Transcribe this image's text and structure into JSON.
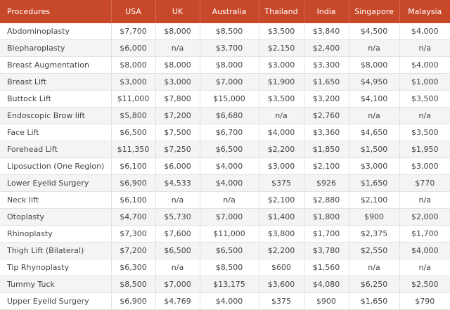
{
  "table": {
    "headers": [
      "Procedures",
      "USA",
      "UK",
      "Australia",
      "Thailand",
      "India",
      "Singapore",
      "Malaysia"
    ],
    "rows": [
      [
        "Abdominoplasty",
        "$7,700",
        "$8,000",
        "$8,500",
        "$3,500",
        "$3,840",
        "$4,500",
        "$4,000"
      ],
      [
        "Blepharoplasty",
        "$6,000",
        "n/a",
        "$3,700",
        "$2,150",
        "$2,400",
        "n/a",
        "n/a"
      ],
      [
        "Breast Augmentation",
        "$8,000",
        "$8,000",
        "$8,000",
        "$3,000",
        "$3,300",
        "$8,000",
        "$4,000"
      ],
      [
        "Breast Lift",
        "$3,000",
        "$3,000",
        "$7,000",
        "$1,900",
        "$1,650",
        "$4,950",
        "$1,000"
      ],
      [
        "Buttock Lift",
        "$11,000",
        "$7,800",
        "$15,000",
        "$3,500",
        "$3,200",
        "$4,100",
        "$3,500"
      ],
      [
        "Endoscopic Brow lift",
        "$5,800",
        "$7,200",
        "$6,680",
        "n/a",
        "$2,760",
        "n/a",
        "n/a"
      ],
      [
        "Face Lift",
        "$6,500",
        "$7,500",
        "$6,700",
        "$4,000",
        "$3,360",
        "$4,650",
        "$3,500"
      ],
      [
        "Forehead Lift",
        "$11,350",
        "$7,250",
        "$6,500",
        "$2,200",
        "$1,850",
        "$1,500",
        "$1,950"
      ],
      [
        "Liposuction (One Region)",
        "$6,100",
        "$6,000",
        "$4,000",
        "$3,000",
        "$2,100",
        "$3,000",
        "$3,000"
      ],
      [
        "Lower Eyelid Surgery",
        "$6,900",
        "$4,533",
        "$4,000",
        "$375",
        "$926",
        "$1,650",
        "$770"
      ],
      [
        "Neck lift",
        "$6,100",
        "n/a",
        "n/a",
        "$2,100",
        "$2,880",
        "$2,100",
        "n/a"
      ],
      [
        "Otoplasty",
        "$4,700",
        "$5,730",
        "$7,000",
        "$1,400",
        "$1,800",
        "$900",
        "$2,000"
      ],
      [
        "Rhinoplasty",
        "$7,300",
        "$7,600",
        "$11,000",
        "$3,800",
        "$1,700",
        "$2,375",
        "$1,700"
      ],
      [
        "Thigh Lift (Bilateral)",
        "$7,200",
        "$6,500",
        "$6,500",
        "$2,200",
        "$3,780",
        "$2,550",
        "$4,000"
      ],
      [
        "Tip Rhynoplasty",
        "$6,300",
        "n/a",
        "$8,500",
        "$600",
        "$1,560",
        "n/a",
        "n/a"
      ],
      [
        "Tummy Tuck",
        "$8,500",
        "$7,000",
        "$13,175",
        "$3,600",
        "$4,080",
        "$6,250",
        "$2,500"
      ],
      [
        "Upper Eyelid Surgery",
        "$6,900",
        "$4,769",
        "$4,000",
        "$375",
        "$900",
        "$1,650",
        "$790"
      ]
    ]
  },
  "colors": {
    "header_bg": "#c8482a",
    "header_text": "#ffffff",
    "stripe_bg": "#f4f4f4",
    "grid": "#e2e2e2",
    "text": "#444444"
  }
}
